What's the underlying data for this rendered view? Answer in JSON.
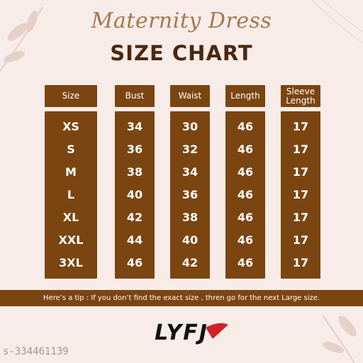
{
  "header": {
    "script_title": "Maternity Dress",
    "title": "SIZE CHART"
  },
  "table": {
    "columns": [
      "Size",
      "Bust",
      "Waist",
      "Length",
      "Sleeve Length"
    ],
    "rows": [
      [
        "XS",
        34,
        30,
        46,
        17
      ],
      [
        "S",
        36,
        32,
        46,
        17
      ],
      [
        "M",
        38,
        34,
        46,
        17
      ],
      [
        "L",
        40,
        36,
        46,
        17
      ],
      [
        "XL",
        42,
        38,
        46,
        17
      ],
      [
        "XXL",
        44,
        40,
        46,
        17
      ],
      [
        "3XL",
        46,
        42,
        46,
        17
      ]
    ]
  },
  "tip": "Here’s a tip : If  you don’t  find the exact size , thren go for the next Large size.",
  "logo": "LYFJ",
  "watermark": "s-334461139"
}
